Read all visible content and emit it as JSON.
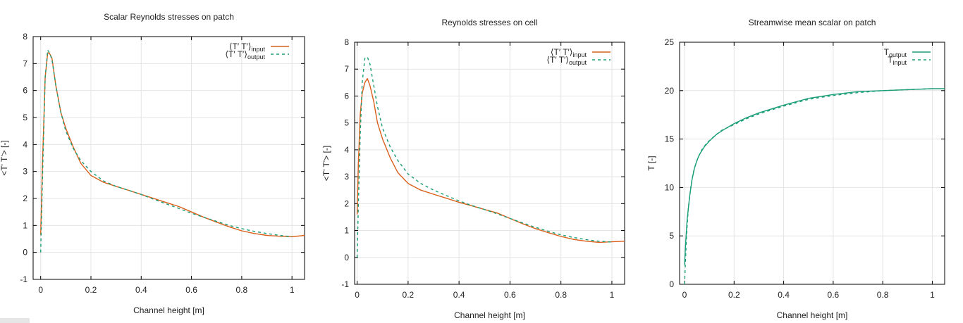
{
  "colors": {
    "input": "#d95f1a",
    "output": "#1a9e77",
    "grid": "#e4e4e4",
    "frame": "#000000"
  },
  "chart_data": [
    {
      "type": "line",
      "title": "Scalar Reynolds stresses on patch",
      "xlabel": "Channel height [m]",
      "ylabel": "<T' T'> [-]",
      "xlim": [
        -0.03,
        1.05
      ],
      "ylim": [
        -1,
        8
      ],
      "xticks": [
        0,
        0.2,
        0.4,
        0.6,
        0.8,
        1
      ],
      "yticks": [
        -1,
        0,
        1,
        2,
        3,
        4,
        5,
        6,
        7,
        8
      ],
      "grid": true,
      "legend": "top-right",
      "series": [
        {
          "name": "<T' T'>input",
          "label_base": "⟨T′ T′⟩",
          "label_sub": "input",
          "style": "solid",
          "color": "#d95f1a",
          "x": [
            0,
            0.008,
            0.018,
            0.028,
            0.035,
            0.045,
            0.06,
            0.08,
            0.1,
            0.13,
            0.16,
            0.2,
            0.25,
            0.3,
            0.35,
            0.4,
            0.45,
            0.5,
            0.55,
            0.6,
            0.65,
            0.7,
            0.75,
            0.8,
            0.85,
            0.9,
            0.95,
            1.0,
            1.05
          ],
          "y": [
            0.65,
            3.5,
            6.5,
            7.4,
            7.38,
            7.2,
            6.2,
            5.2,
            4.6,
            3.9,
            3.3,
            2.85,
            2.6,
            2.45,
            2.3,
            2.15,
            2.0,
            1.85,
            1.7,
            1.5,
            1.3,
            1.12,
            0.95,
            0.8,
            0.7,
            0.63,
            0.6,
            0.58,
            0.63
          ]
        },
        {
          "name": "<T' T'>output",
          "label_base": "⟨T′ T′⟩",
          "label_sub": "output",
          "style": "dashed",
          "color": "#1a9e77",
          "x": [
            0,
            0.008,
            0.018,
            0.028,
            0.035,
            0.045,
            0.06,
            0.08,
            0.1,
            0.13,
            0.16,
            0.2,
            0.25,
            0.3,
            0.35,
            0.4,
            0.45,
            0.5,
            0.55,
            0.6,
            0.65,
            0.7,
            0.75,
            0.8,
            0.85,
            0.9,
            0.95,
            1.0
          ],
          "y": [
            0.0,
            3.0,
            6.5,
            7.5,
            7.4,
            7.15,
            6.2,
            5.2,
            4.5,
            3.85,
            3.4,
            3.0,
            2.65,
            2.45,
            2.3,
            2.15,
            1.97,
            1.8,
            1.63,
            1.45,
            1.3,
            1.15,
            1.0,
            0.88,
            0.78,
            0.7,
            0.63,
            0.58
          ]
        }
      ]
    },
    {
      "type": "line",
      "title": "Reynolds stresses on cell",
      "xlabel": "Channel height [m]",
      "ylabel": "<T' T'> [-]",
      "xlim": [
        -0.01,
        1.05
      ],
      "ylim": [
        -1,
        8
      ],
      "xticks": [
        0,
        0.2,
        0.4,
        0.6,
        0.8,
        1
      ],
      "yticks": [
        -1,
        0,
        1,
        2,
        3,
        4,
        5,
        6,
        7,
        8
      ],
      "grid": true,
      "legend": "top-right",
      "series": [
        {
          "name": "<T' T'>input",
          "label_base": "⟨T′ T′⟩",
          "label_sub": "input",
          "style": "solid",
          "color": "#d95f1a",
          "x": [
            0,
            0.005,
            0.012,
            0.02,
            0.03,
            0.04,
            0.05,
            0.065,
            0.08,
            0.1,
            0.13,
            0.16,
            0.2,
            0.25,
            0.3,
            0.35,
            0.4,
            0.45,
            0.5,
            0.55,
            0.6,
            0.65,
            0.7,
            0.75,
            0.8,
            0.85,
            0.9,
            0.95,
            1.0,
            1.05
          ],
          "y": [
            1.6,
            3.5,
            5.3,
            6.1,
            6.5,
            6.65,
            6.4,
            5.8,
            5.0,
            4.4,
            3.7,
            3.15,
            2.75,
            2.5,
            2.35,
            2.2,
            2.05,
            1.92,
            1.78,
            1.65,
            1.45,
            1.25,
            1.07,
            0.92,
            0.78,
            0.67,
            0.6,
            0.56,
            0.58,
            0.6
          ]
        },
        {
          "name": "<T' T'>output",
          "label_base": "⟨T′ T′⟩",
          "label_sub": "output",
          "style": "dashed",
          "color": "#1a9e77",
          "x": [
            0,
            0.005,
            0.012,
            0.02,
            0.03,
            0.04,
            0.05,
            0.065,
            0.08,
            0.1,
            0.13,
            0.16,
            0.2,
            0.25,
            0.3,
            0.35,
            0.4,
            0.45,
            0.5,
            0.55,
            0.6,
            0.65,
            0.7,
            0.75,
            0.8,
            0.85,
            0.9,
            0.95,
            1.0
          ],
          "y": [
            0.0,
            2.0,
            4.5,
            6.5,
            7.4,
            7.45,
            7.2,
            6.4,
            5.6,
            4.8,
            4.1,
            3.6,
            3.1,
            2.75,
            2.5,
            2.3,
            2.1,
            1.93,
            1.78,
            1.62,
            1.45,
            1.28,
            1.12,
            0.97,
            0.84,
            0.74,
            0.66,
            0.6,
            0.57
          ]
        }
      ]
    },
    {
      "type": "line",
      "title": "Streamwise mean scalar on patch",
      "xlabel": "Channel height [m]",
      "ylabel": "T [-]",
      "xlim": [
        -0.02,
        1.05
      ],
      "ylim": [
        0,
        25
      ],
      "xticks": [
        0,
        0.2,
        0.4,
        0.6,
        0.8,
        1
      ],
      "yticks": [
        0,
        5,
        10,
        15,
        20,
        25
      ],
      "grid": true,
      "legend": "top-right",
      "series": [
        {
          "name": "Toutput",
          "label_base": "T",
          "label_sub": "output",
          "style": "solid",
          "color": "#1a9e77",
          "x": [
            0,
            0.005,
            0.01,
            0.02,
            0.03,
            0.04,
            0.05,
            0.06,
            0.08,
            0.1,
            0.13,
            0.16,
            0.2,
            0.25,
            0.3,
            0.35,
            0.4,
            0.5,
            0.6,
            0.7,
            0.8,
            0.9,
            1.0,
            1.05
          ],
          "y": [
            2.0,
            4.5,
            6.5,
            9.0,
            10.8,
            12.0,
            12.8,
            13.4,
            14.2,
            14.8,
            15.5,
            16.0,
            16.6,
            17.2,
            17.7,
            18.1,
            18.5,
            19.2,
            19.6,
            19.9,
            20.0,
            20.1,
            20.2,
            20.2
          ]
        },
        {
          "name": "Tinput",
          "label_base": "T",
          "label_sub": "input",
          "style": "dashed",
          "color": "#1a9e77",
          "x": [
            0,
            0.004,
            0.008,
            0.015,
            0.025,
            0.035,
            0.045,
            0.055,
            0.07,
            0.09,
            0.12,
            0.15,
            0.2,
            0.25,
            0.3,
            0.35,
            0.4,
            0.5,
            0.6,
            0.7,
            0.8,
            0.9,
            1.0
          ],
          "y": [
            0.0,
            2.5,
            5.0,
            7.8,
            10.0,
            11.5,
            12.4,
            13.1,
            13.9,
            14.6,
            15.3,
            15.9,
            16.5,
            17.1,
            17.6,
            18.0,
            18.4,
            19.1,
            19.5,
            19.8,
            20.0,
            20.1,
            20.2
          ]
        }
      ]
    }
  ]
}
